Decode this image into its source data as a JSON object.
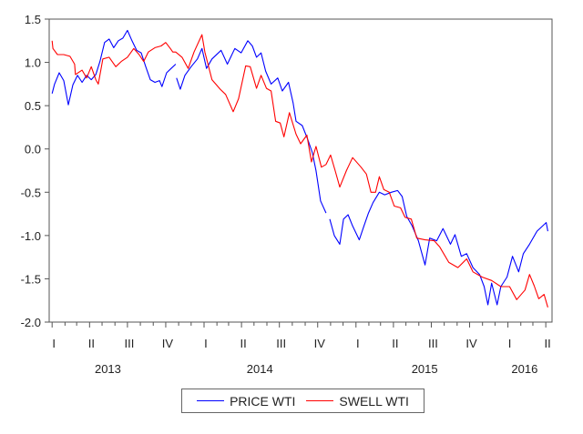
{
  "chart_data": {
    "type": "line",
    "title": "",
    "xlabel": "",
    "ylabel": "",
    "ylim": [
      -2.0,
      1.5
    ],
    "xlim": [
      "2012-12-25",
      "2016-04-16"
    ],
    "y_ticks": [
      "1.5",
      "1.0",
      "0.5",
      "0.0",
      "-0.5",
      "-1.0",
      "-1.5",
      "-2.0"
    ],
    "y_tick_values": [
      1.5,
      1.0,
      0.5,
      0.0,
      -0.5,
      -1.0,
      -1.5,
      -2.0
    ],
    "quarter_ticks": [
      {
        "label": "I",
        "date": "2013-01-01"
      },
      {
        "label": "II",
        "date": "2013-04-01"
      },
      {
        "label": "III",
        "date": "2013-07-01"
      },
      {
        "label": "IV",
        "date": "2013-10-01"
      },
      {
        "label": "I",
        "date": "2014-01-01"
      },
      {
        "label": "II",
        "date": "2014-04-01"
      },
      {
        "label": "III",
        "date": "2014-07-01"
      },
      {
        "label": "IV",
        "date": "2014-10-01"
      },
      {
        "label": "I",
        "date": "2015-01-01"
      },
      {
        "label": "II",
        "date": "2015-04-01"
      },
      {
        "label": "III",
        "date": "2015-07-01"
      },
      {
        "label": "IV",
        "date": "2015-10-01"
      },
      {
        "label": "I",
        "date": "2016-01-01"
      },
      {
        "label": "II",
        "date": "2016-04-01"
      }
    ],
    "year_labels": [
      {
        "label": "2013",
        "date": "2013-05-15"
      },
      {
        "label": "2014",
        "date": "2014-05-15"
      },
      {
        "label": "2015",
        "date": "2015-06-15"
      },
      {
        "label": "2016",
        "date": "2016-02-10"
      }
    ],
    "grid": false,
    "legend_position": "bottom",
    "series": [
      {
        "name": "PRICE WTI",
        "color": "#0000ff",
        "points": [
          [
            "2013-01-01",
            0.64
          ],
          [
            "2013-01-07",
            0.75
          ],
          [
            "2013-01-18",
            0.88
          ],
          [
            "2013-01-29",
            0.79
          ],
          [
            "2013-02-09",
            0.51
          ],
          [
            "2013-02-20",
            0.74
          ],
          [
            "2013-03-03",
            0.85
          ],
          [
            "2013-03-14",
            0.77
          ],
          [
            "2013-03-25",
            0.85
          ],
          [
            "2013-04-05",
            0.8
          ],
          [
            "2013-04-16",
            0.86
          ],
          [
            "2013-04-26",
            1.01
          ],
          [
            "2013-05-07",
            1.23
          ],
          [
            "2013-05-18",
            1.27
          ],
          [
            "2013-05-29",
            1.17
          ],
          [
            "2013-06-09",
            1.25
          ],
          [
            "2013-06-20",
            1.28
          ],
          [
            "2013-07-01",
            1.37
          ],
          [
            "2013-07-12",
            1.25
          ],
          [
            "2013-07-23",
            1.14
          ],
          [
            "2013-08-03",
            1.11
          ],
          [
            "2013-08-14",
            0.95
          ],
          [
            "2013-08-25",
            0.8
          ],
          [
            "2013-09-05",
            0.77
          ],
          [
            "2013-09-16",
            0.79
          ],
          [
            "2013-09-22",
            0.72
          ],
          [
            "2013-10-03",
            0.88
          ],
          [
            "2013-10-14",
            0.93
          ],
          [
            "2013-10-25",
            0.98
          ],
          null,
          [
            "2013-10-27",
            0.82
          ],
          [
            "2013-11-05",
            0.69
          ],
          [
            "2013-11-16",
            0.85
          ],
          [
            "2013-12-01",
            0.95
          ],
          [
            "2013-12-16",
            1.04
          ],
          [
            "2013-12-27",
            1.16
          ],
          [
            "2014-01-07",
            0.93
          ],
          [
            "2014-01-20",
            1.04
          ],
          [
            "2014-02-11",
            1.14
          ],
          [
            "2014-02-26",
            0.98
          ],
          [
            "2014-03-16",
            1.16
          ],
          [
            "2014-03-31",
            1.11
          ],
          [
            "2014-04-16",
            1.25
          ],
          [
            "2014-04-27",
            1.19
          ],
          [
            "2014-05-07",
            1.06
          ],
          [
            "2014-05-18",
            1.11
          ],
          [
            "2014-05-29",
            0.9
          ],
          [
            "2014-06-11",
            0.75
          ],
          [
            "2014-06-27",
            0.82
          ],
          [
            "2014-07-08",
            0.67
          ],
          [
            "2014-07-23",
            0.77
          ],
          [
            "2014-08-03",
            0.53
          ],
          [
            "2014-08-10",
            0.32
          ],
          [
            "2014-08-25",
            0.27
          ],
          [
            "2014-09-07",
            0.11
          ],
          [
            "2014-09-18",
            -0.04
          ],
          [
            "2014-09-27",
            -0.25
          ],
          [
            "2014-10-08",
            -0.6
          ],
          [
            "2014-10-21",
            -0.74
          ],
          null,
          [
            "2014-10-30",
            -0.81
          ],
          [
            "2014-11-10",
            -1.0
          ],
          [
            "2014-11-23",
            -1.1
          ],
          [
            "2014-12-02",
            -0.81
          ],
          [
            "2014-12-13",
            -0.76
          ],
          [
            "2014-12-24",
            -0.89
          ],
          [
            "2015-01-09",
            -1.05
          ],
          [
            "2015-01-20",
            -0.89
          ],
          [
            "2015-01-31",
            -0.74
          ],
          [
            "2015-02-11",
            -0.62
          ],
          [
            "2015-02-26",
            -0.5
          ],
          [
            "2015-03-11",
            -0.53
          ],
          [
            "2015-03-27",
            -0.5
          ],
          [
            "2015-04-11",
            -0.48
          ],
          [
            "2015-04-22",
            -0.55
          ],
          [
            "2015-05-03",
            -0.78
          ],
          [
            "2015-05-16",
            -0.89
          ],
          [
            "2015-05-31",
            -1.06
          ],
          [
            "2015-06-16",
            -1.34
          ],
          [
            "2015-06-27",
            -1.03
          ],
          [
            "2015-07-14",
            -1.06
          ],
          [
            "2015-07-29",
            -0.92
          ],
          [
            "2015-08-16",
            -1.1
          ],
          [
            "2015-08-27",
            -0.99
          ],
          [
            "2015-09-11",
            -1.24
          ],
          [
            "2015-09-24",
            -1.21
          ],
          [
            "2015-10-09",
            -1.37
          ],
          [
            "2015-10-25",
            -1.45
          ],
          [
            "2015-11-05",
            -1.59
          ],
          [
            "2015-11-14",
            -1.8
          ],
          [
            "2015-11-23",
            -1.55
          ],
          [
            "2015-12-06",
            -1.8
          ],
          [
            "2015-12-15",
            -1.59
          ],
          [
            "2015-12-30",
            -1.48
          ],
          [
            "2016-01-12",
            -1.24
          ],
          [
            "2016-01-27",
            -1.42
          ],
          [
            "2016-02-07",
            -1.21
          ],
          [
            "2016-02-22",
            -1.1
          ],
          [
            "2016-03-11",
            -0.95
          ],
          [
            "2016-04-02",
            -0.85
          ],
          [
            "2016-04-06",
            -0.95
          ]
        ]
      },
      {
        "name": "SWELL WTI",
        "color": "#ff0000",
        "points": [
          [
            "2013-01-01",
            1.25
          ],
          [
            "2013-01-03",
            1.16
          ],
          [
            "2013-01-14",
            1.09
          ],
          [
            "2013-01-29",
            1.09
          ],
          [
            "2013-02-13",
            1.07
          ],
          [
            "2013-02-24",
            0.98
          ],
          [
            "2013-02-26",
            0.86
          ],
          [
            "2013-03-14",
            0.91
          ],
          [
            "2013-03-25",
            0.82
          ],
          [
            "2013-04-05",
            0.95
          ],
          [
            "2013-04-16",
            0.8
          ],
          [
            "2013-04-22",
            0.75
          ],
          [
            "2013-05-03",
            1.04
          ],
          [
            "2013-05-18",
            1.06
          ],
          [
            "2013-06-03",
            0.95
          ],
          [
            "2013-06-16",
            1.01
          ],
          [
            "2013-07-01",
            1.06
          ],
          [
            "2013-07-16",
            1.16
          ],
          [
            "2013-07-29",
            1.09
          ],
          [
            "2013-08-09",
            1.01
          ],
          [
            "2013-08-20",
            1.12
          ],
          [
            "2013-09-05",
            1.17
          ],
          [
            "2013-09-20",
            1.19
          ],
          [
            "2013-10-01",
            1.23
          ],
          [
            "2013-10-12",
            1.16
          ],
          [
            "2013-10-18",
            1.12
          ],
          [
            "2013-10-25",
            1.12
          ],
          [
            "2013-11-09",
            1.06
          ],
          [
            "2013-11-24",
            0.93
          ],
          [
            "2013-12-08",
            1.12
          ],
          [
            "2013-12-27",
            1.32
          ],
          [
            "2014-01-03",
            1.12
          ],
          [
            "2014-01-20",
            0.8
          ],
          [
            "2014-02-09",
            0.69
          ],
          [
            "2014-02-22",
            0.63
          ],
          [
            "2014-03-12",
            0.43
          ],
          [
            "2014-03-25",
            0.58
          ],
          [
            "2014-04-11",
            0.96
          ],
          [
            "2014-04-22",
            0.95
          ],
          [
            "2014-05-07",
            0.7
          ],
          [
            "2014-05-18",
            0.85
          ],
          [
            "2014-05-31",
            0.7
          ],
          [
            "2014-06-11",
            0.67
          ],
          [
            "2014-06-22",
            0.32
          ],
          [
            "2014-07-03",
            0.3
          ],
          [
            "2014-07-12",
            0.14
          ],
          [
            "2014-07-25",
            0.42
          ],
          [
            "2014-08-10",
            0.17
          ],
          [
            "2014-08-21",
            0.06
          ],
          [
            "2014-09-05",
            0.16
          ],
          [
            "2014-09-16",
            -0.15
          ],
          [
            "2014-09-27",
            0.03
          ],
          [
            "2014-10-10",
            -0.21
          ],
          [
            "2014-10-21",
            -0.18
          ],
          [
            "2014-11-01",
            -0.07
          ],
          [
            "2014-11-12",
            -0.25
          ],
          [
            "2014-11-23",
            -0.44
          ],
          [
            "2014-12-09",
            -0.25
          ],
          [
            "2014-12-24",
            -0.1
          ],
          [
            "2015-01-13",
            -0.21
          ],
          [
            "2015-01-26",
            -0.29
          ],
          [
            "2015-02-06",
            -0.5
          ],
          [
            "2015-02-17",
            -0.5
          ],
          [
            "2015-02-26",
            -0.32
          ],
          [
            "2015-03-09",
            -0.47
          ],
          [
            "2015-03-22",
            -0.5
          ],
          [
            "2015-04-03",
            -0.66
          ],
          [
            "2015-04-18",
            -0.68
          ],
          [
            "2015-04-29",
            -0.79
          ],
          [
            "2015-05-14",
            -0.81
          ],
          [
            "2015-05-27",
            -1.03
          ],
          [
            "2015-06-16",
            -1.05
          ],
          [
            "2015-07-08",
            -1.06
          ],
          [
            "2015-07-21",
            -1.13
          ],
          [
            "2015-08-12",
            -1.31
          ],
          [
            "2015-09-03",
            -1.37
          ],
          [
            "2015-09-24",
            -1.27
          ],
          [
            "2015-10-09",
            -1.42
          ],
          [
            "2015-10-31",
            -1.48
          ],
          [
            "2015-11-23",
            -1.52
          ],
          [
            "2015-12-15",
            -1.59
          ],
          [
            "2016-01-05",
            -1.59
          ],
          [
            "2016-01-22",
            -1.74
          ],
          [
            "2016-02-11",
            -1.63
          ],
          [
            "2016-02-22",
            -1.45
          ],
          [
            "2016-03-04",
            -1.58
          ],
          [
            "2016-03-15",
            -1.73
          ],
          [
            "2016-03-28",
            -1.68
          ],
          [
            "2016-04-06",
            -1.83
          ]
        ]
      }
    ]
  },
  "legend": {
    "items": [
      {
        "label": "PRICE WTI"
      },
      {
        "label": "SWELL WTI"
      }
    ]
  }
}
